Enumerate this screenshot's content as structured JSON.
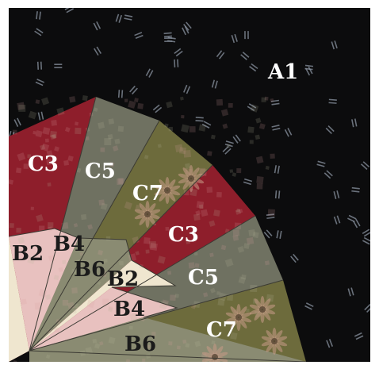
{
  "labels": {
    "a1": "A1",
    "b2_top": "B2",
    "b4_top": "B4",
    "b6_top": "B6",
    "b2_bottom": "B2",
    "b4_bottom": "B4",
    "b6_bottom": "B6",
    "c3_top": "C3",
    "c5_top": "C5",
    "c7_top": "C7",
    "c3_bottom": "C3",
    "c5_bottom": "C5",
    "c7_bottom": "C7"
  },
  "colors": {
    "background_black": "#0c0c0d",
    "background_dash": "#8a93a0",
    "red_fabric": "#8e1e2b",
    "red_tile": "#d9a0a2",
    "olive_green": "#6f7161",
    "cream": "#efe6cf",
    "pink": "#e8c1bf",
    "sage_tile": "#8a8b72",
    "floral_base": "#6d6b3c",
    "floral_petal": "#c79a86"
  }
}
